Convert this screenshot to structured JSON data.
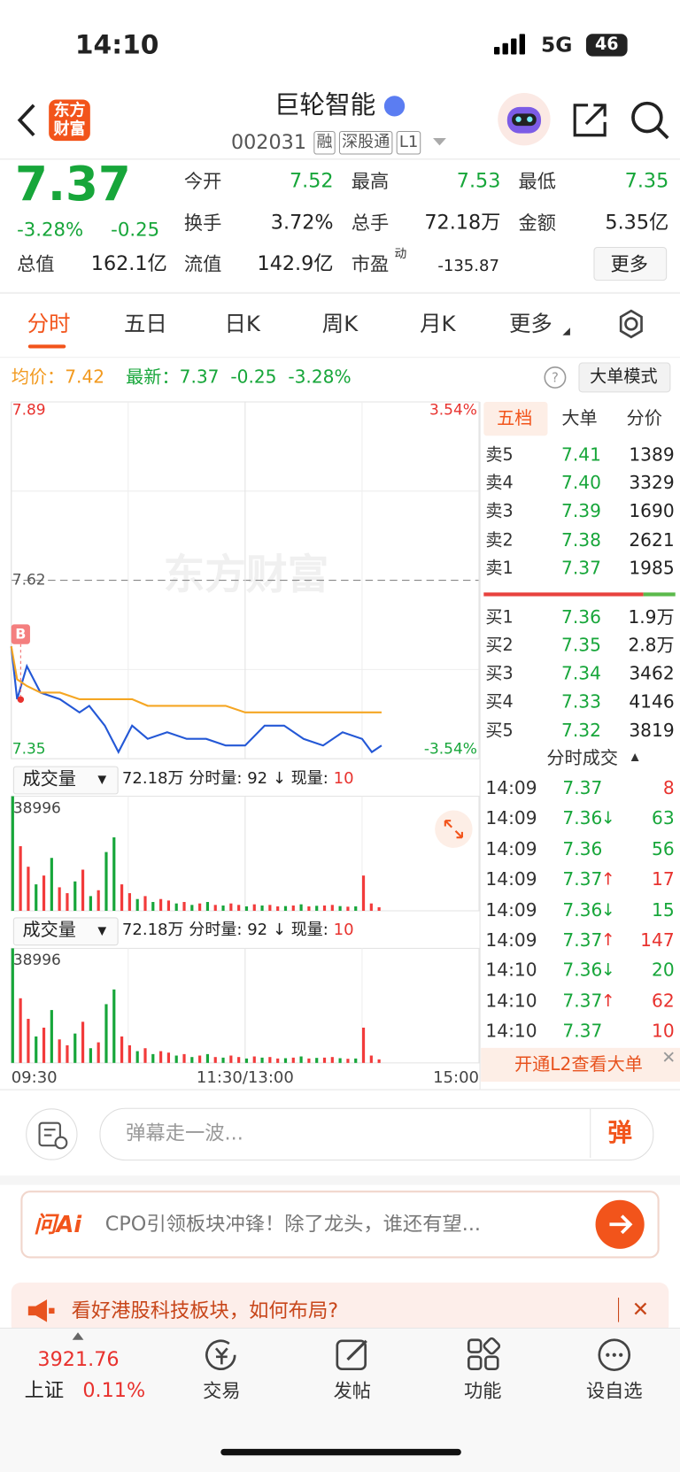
{
  "status_bar": {
    "time": "14:10",
    "network": "5G",
    "battery": "46"
  },
  "header": {
    "logo": "东方财富",
    "title": "巨轮智能",
    "code": "002031",
    "tags": [
      "融",
      "深股通",
      "L1"
    ]
  },
  "quote": {
    "price": "7.37",
    "change_pct": "-3.28%",
    "change": "-0.25",
    "fields": [
      [
        "今开",
        "7.52"
      ],
      [
        "最高",
        "7.53"
      ],
      [
        "最低",
        "7.35"
      ],
      [
        "换手",
        "3.72%"
      ],
      [
        "总手",
        "72.18万"
      ],
      [
        "金额",
        "5.35亿"
      ],
      [
        "总值",
        "162.1亿"
      ],
      [
        "流值",
        "142.9亿"
      ],
      [
        "市盈",
        "-135.87"
      ]
    ],
    "pe_sup": "动",
    "more": "更多"
  },
  "tabs": [
    "分时",
    "五日",
    "日K",
    "周K",
    "月K",
    "更多"
  ],
  "info_bar": {
    "avg_label": "均价：",
    "avg": "7.42",
    "latest_label": "最新：",
    "latest": "7.37",
    "change": "-0.25",
    "change_pct": "-3.28%",
    "mode_button": "大单模式"
  },
  "chart_data": [
    {
      "type": "line",
      "watermark": "东方财富",
      "marker": "B",
      "xlim": [
        0,
        240
      ],
      "xticks": [
        {
          "value": 0,
          "label": "09:30"
        },
        {
          "value": 120,
          "label": "11:30/13:00"
        },
        {
          "value": 240,
          "label": "15:00"
        }
      ],
      "ylim": [
        7.35,
        7.89
      ],
      "yticks": [
        7.35,
        7.62,
        7.89
      ],
      "y2lim": [
        -3.54,
        3.54
      ],
      "y2ticks": [
        {
          "value": -3.54,
          "label": "-3.54%"
        },
        {
          "value": 3.54,
          "label": "3.54%"
        }
      ],
      "x": [
        0,
        3,
        8,
        15,
        25,
        35,
        40,
        48,
        55,
        62,
        70,
        80,
        90,
        100,
        110,
        120,
        130,
        140,
        150,
        160,
        170,
        180,
        185,
        190
      ],
      "series": [
        {
          "color": "#2458d6",
          "values": [
            7.52,
            7.44,
            7.49,
            7.45,
            7.44,
            7.42,
            7.43,
            7.4,
            7.36,
            7.4,
            7.38,
            7.39,
            7.38,
            7.38,
            7.37,
            7.37,
            7.4,
            7.4,
            7.38,
            7.37,
            7.39,
            7.38,
            7.36,
            7.37
          ]
        },
        {
          "color": "#f5a623",
          "values": [
            7.52,
            7.47,
            7.46,
            7.45,
            7.45,
            7.44,
            7.44,
            7.44,
            7.44,
            7.44,
            7.43,
            7.43,
            7.43,
            7.43,
            7.43,
            7.42,
            7.42,
            7.42,
            7.42,
            7.42,
            7.42,
            7.42,
            7.42,
            7.42
          ]
        }
      ]
    },
    {
      "type": "bar",
      "xlim": [
        0,
        240
      ],
      "ylim": [
        0,
        38996
      ],
      "yticks": [
        38996
      ],
      "x": [
        0,
        4,
        8,
        12,
        16,
        20,
        24,
        28,
        32,
        36,
        40,
        44,
        48,
        52,
        56,
        60,
        64,
        68,
        72,
        76,
        80,
        84,
        88,
        92,
        96,
        100,
        104,
        108,
        112,
        116,
        120,
        124,
        128,
        132,
        136,
        140,
        144,
        148,
        152,
        156,
        160,
        164,
        168,
        172,
        176,
        180,
        184,
        188
      ],
      "values": [
        38996,
        22000,
        15000,
        9000,
        12000,
        18000,
        8000,
        6000,
        10000,
        14000,
        5000,
        7000,
        20000,
        25000,
        9000,
        6000,
        4000,
        5000,
        3000,
        4000,
        3500,
        2500,
        3000,
        2000,
        2500,
        3000,
        2000,
        1800,
        2500,
        2000,
        1500,
        2200,
        1800,
        2000,
        1500,
        1600,
        1800,
        2200,
        1500,
        1700,
        1800,
        2000,
        1600,
        1400,
        1500,
        12000,
        2500,
        1200
      ],
      "colors": [
        "#17a63a",
        "#f23b3b",
        "#f23b3b",
        "#17a63a",
        "#f23b3b",
        "#17a63a",
        "#f23b3b",
        "#f23b3b",
        "#17a63a",
        "#f23b3b",
        "#17a63a",
        "#f23b3b",
        "#17a63a",
        "#17a63a",
        "#f23b3b",
        "#f23b3b",
        "#17a63a",
        "#f23b3b",
        "#17a63a",
        "#f23b3b",
        "#f23b3b",
        "#17a63a",
        "#f23b3b",
        "#17a63a",
        "#f23b3b",
        "#17a63a",
        "#f23b3b",
        "#17a63a",
        "#f23b3b",
        "#f23b3b",
        "#17a63a",
        "#f23b3b",
        "#17a63a",
        "#f23b3b",
        "#f23b3b",
        "#17a63a",
        "#f23b3b",
        "#17a63a",
        "#f23b3b",
        "#17a63a",
        "#f23b3b",
        "#f23b3b",
        "#17a63a",
        "#f23b3b",
        "#17a63a",
        "#f23b3b",
        "#f23b3b",
        "#f23b3b"
      ]
    }
  ],
  "volume_header": {
    "label": "成交量",
    "total": "72.18万",
    "minute_label": "分时量: 92 ↓ 现量:",
    "current": "10"
  },
  "order_book": {
    "tabs": [
      "五档",
      "大单",
      "分价"
    ],
    "asks": [
      [
        "卖5",
        "7.41",
        "1389"
      ],
      [
        "卖4",
        "7.40",
        "3329"
      ],
      [
        "卖3",
        "7.39",
        "1690"
      ],
      [
        "卖2",
        "7.38",
        "2621"
      ],
      [
        "卖1",
        "7.37",
        "1985"
      ]
    ],
    "bids": [
      [
        "买1",
        "7.36",
        "1.9万"
      ],
      [
        "买2",
        "7.35",
        "2.8万"
      ],
      [
        "买3",
        "7.34",
        "3462"
      ],
      [
        "买4",
        "7.33",
        "4146"
      ],
      [
        "买5",
        "7.32",
        "3819"
      ]
    ],
    "trades_title": "分时成交",
    "trades": [
      {
        "time": "14:09",
        "price": "7.37",
        "volume": "8",
        "color": "#e8322e"
      },
      {
        "time": "14:09",
        "price": "7.36",
        "arrow": "↓",
        "volume": "63",
        "color": "#17a63a"
      },
      {
        "time": "14:09",
        "price": "7.36",
        "volume": "56",
        "color": "#17a63a"
      },
      {
        "time": "14:09",
        "price": "7.37",
        "arrow": "↑",
        "volume": "17",
        "color": "#e8322e"
      },
      {
        "time": "14:09",
        "price": "7.36",
        "arrow": "↓",
        "volume": "15",
        "color": "#17a63a"
      },
      {
        "time": "14:09",
        "price": "7.37",
        "arrow": "↑",
        "volume": "147",
        "color": "#e8322e"
      },
      {
        "time": "14:10",
        "price": "7.36",
        "arrow": "↓",
        "volume": "20",
        "color": "#17a63a"
      },
      {
        "time": "14:10",
        "price": "7.37",
        "arrow": "↑",
        "volume": "62",
        "color": "#e8322e"
      },
      {
        "time": "14:10",
        "price": "7.37",
        "volume": "10",
        "color": "#e8322e"
      }
    ],
    "l2_button": "开通L2查看大单"
  },
  "comment": {
    "placeholder": "弹幕走一波...",
    "button": "弹"
  },
  "ai": {
    "logo": "问Ai",
    "text": "CPO引领板块冲锋！除了龙头，谁还有望..."
  },
  "banner": {
    "text": "看好港股科技板块，如何布局?"
  },
  "bottom_nav": {
    "index_value": "3921.76",
    "index_name": "上证",
    "index_change": "0.11%",
    "items": [
      "交易",
      "发帖",
      "功能",
      "设自选"
    ]
  }
}
